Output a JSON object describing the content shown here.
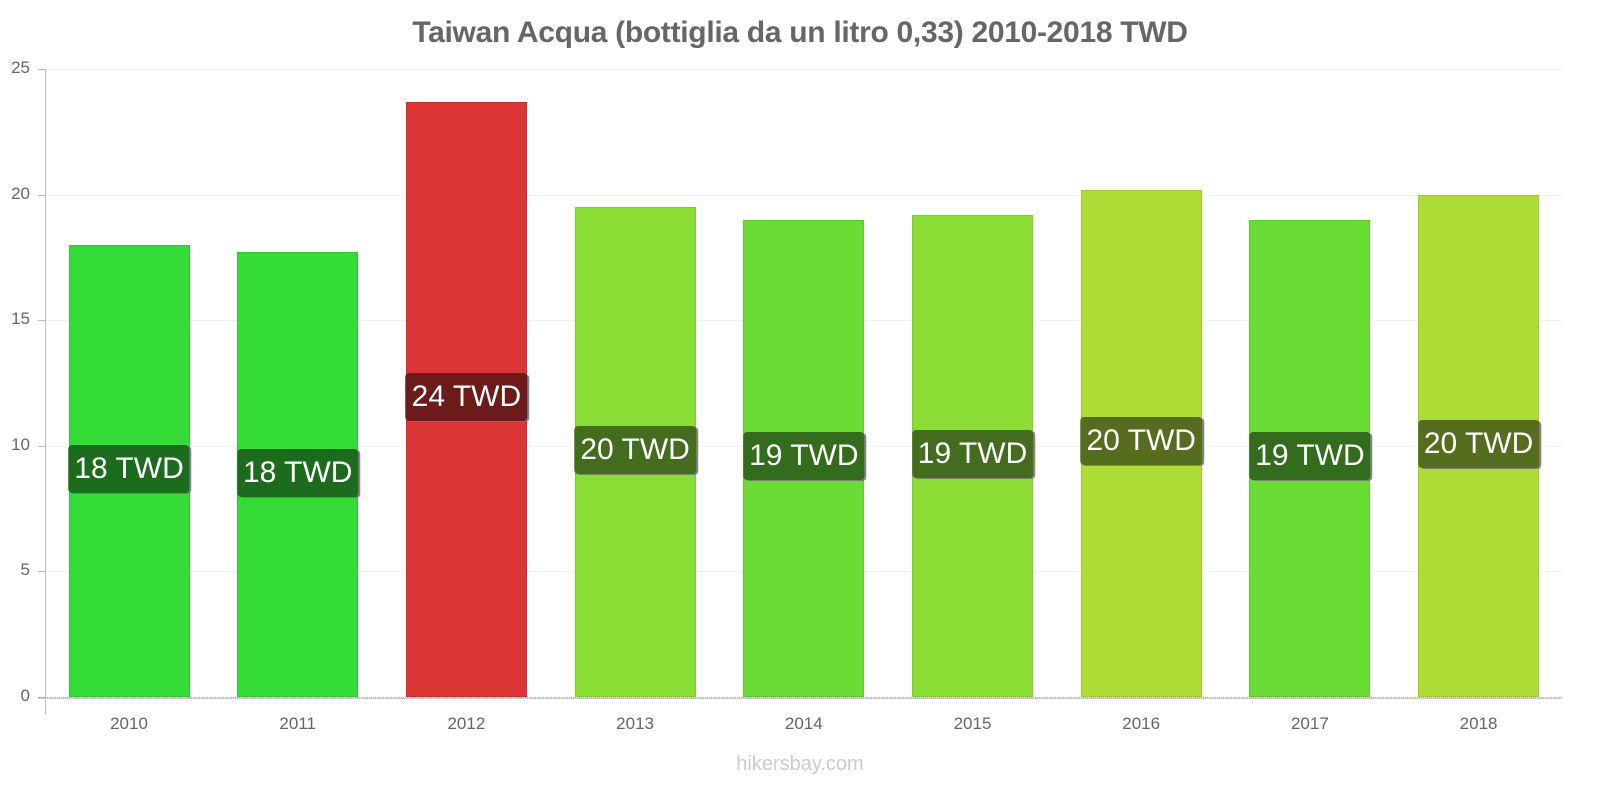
{
  "title": "Taiwan Acqua (bottiglia da un litro 0,33) 2010-2018 TWD",
  "watermark": "hikersbay.com",
  "yaxis": {
    "ticks": [
      "0",
      "5",
      "10",
      "15",
      "20",
      "25"
    ]
  },
  "bars": [
    {
      "year": "2010",
      "label": "18 TWD",
      "color": "#35dc37",
      "label_bg": "#1d6c1e"
    },
    {
      "year": "2011",
      "label": "18 TWD",
      "color": "#35dc37",
      "label_bg": "#1d6c1e"
    },
    {
      "year": "2012",
      "label": "24 TWD",
      "color": "#dc3535",
      "label_bg": "#6c1a1a"
    },
    {
      "year": "2013",
      "label": "20 TWD",
      "color": "#8add35",
      "label_bg": "#446c1e"
    },
    {
      "year": "2014",
      "label": "19 TWD",
      "color": "#6adc35",
      "label_bg": "#346c1e"
    },
    {
      "year": "2015",
      "label": "19 TWD",
      "color": "#8add35",
      "label_bg": "#446c1e"
    },
    {
      "year": "2016",
      "label": "20 TWD",
      "color": "#addd35",
      "label_bg": "#566c1e"
    },
    {
      "year": "2017",
      "label": "19 TWD",
      "color": "#6adc35",
      "label_bg": "#346c1e"
    },
    {
      "year": "2018",
      "label": "20 TWD",
      "color": "#addd35",
      "label_bg": "#566c1e"
    }
  ],
  "chart_data": {
    "type": "bar",
    "title": "Taiwan Acqua (bottiglia da un litro 0,33) 2010-2018 TWD",
    "categories": [
      "2010",
      "2011",
      "2012",
      "2013",
      "2014",
      "2015",
      "2016",
      "2017",
      "2018"
    ],
    "values": [
      18.0,
      17.7,
      23.7,
      19.5,
      19.0,
      19.2,
      20.2,
      19.0,
      20.0
    ],
    "data_labels": [
      "18 TWD",
      "18 TWD",
      "24 TWD",
      "20 TWD",
      "19 TWD",
      "19 TWD",
      "20 TWD",
      "19 TWD",
      "20 TWD"
    ],
    "bar_colors": [
      "#35dc37",
      "#35dc37",
      "#dc3535",
      "#8add35",
      "#6adc35",
      "#8add35",
      "#addd35",
      "#6adc35",
      "#addd35"
    ],
    "xlabel": "",
    "ylabel": "",
    "ylim": [
      0,
      25
    ],
    "yticks": [
      0,
      5,
      10,
      15,
      20,
      25
    ],
    "grid": true,
    "legend": null,
    "annotations": [
      "hikersbay.com"
    ]
  }
}
